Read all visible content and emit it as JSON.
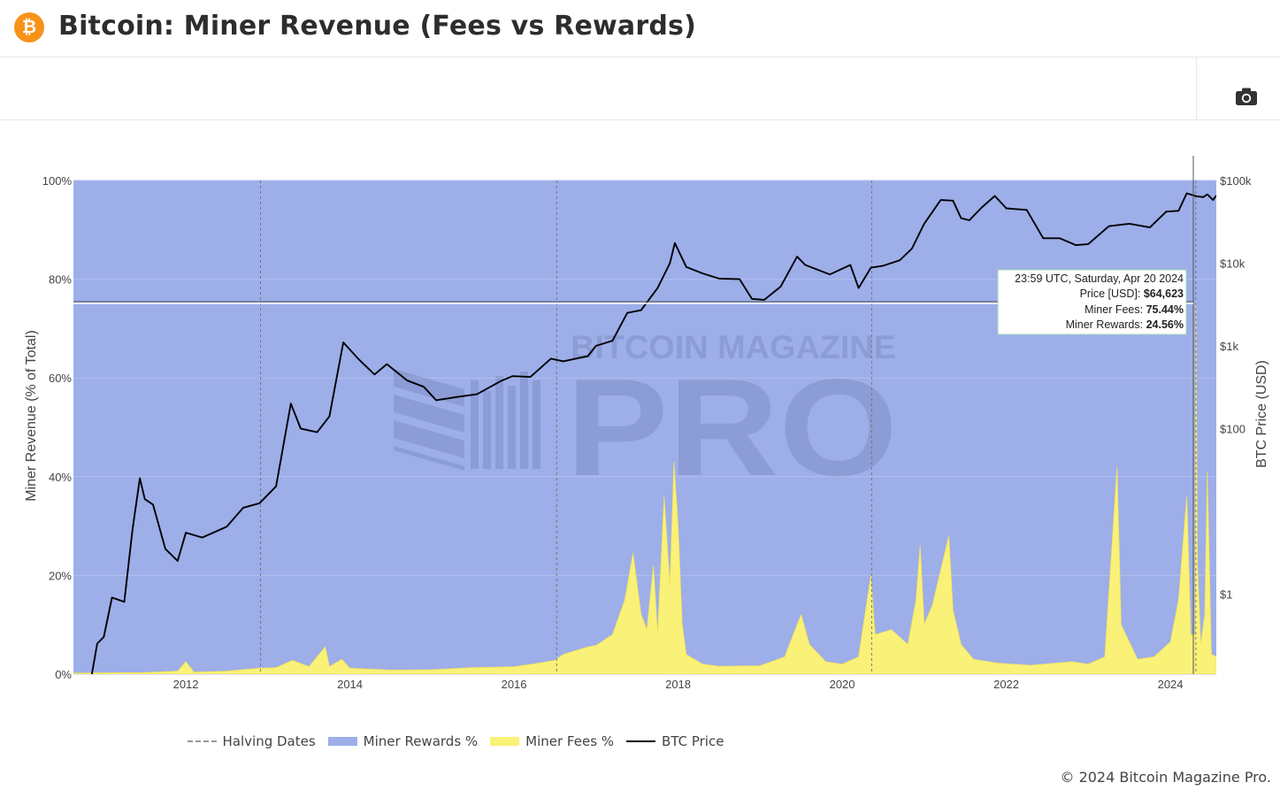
{
  "header": {
    "logo_glyph": "₿",
    "title": "Bitcoin: Miner Revenue (Fees vs Rewards)"
  },
  "toolbar": {
    "camera_icon": "camera-icon"
  },
  "colors": {
    "rewards": "#9daee9",
    "fees": "#faf178",
    "fees_line": "#f2e35a",
    "price": "#000000",
    "halving": "#777777",
    "brand": "#f7931a"
  },
  "watermark": {
    "line1": "BITCOIN MAGAZINE",
    "line2": "PRO"
  },
  "legend": {
    "halving": "Halving Dates",
    "rewards": "Miner Rewards %",
    "fees": "Miner Fees %",
    "price": "BTC Price"
  },
  "tooltip": {
    "date": "23:59 UTC, Saturday, Apr 20 2024",
    "price_label": "Price [USD]:",
    "price_value": "$64,623",
    "fees_label": "Miner Fees:",
    "fees_value": "75.44%",
    "rewards_label": "Miner Rewards:",
    "rewards_value": "24.56%"
  },
  "copyright": "© 2024 Bitcoin Magazine Pro.",
  "chart_data": {
    "type": "area",
    "x_range": [
      2010.63,
      2024.56
    ],
    "ylim": [
      0,
      100
    ],
    "ylabel": "Miner Revenue (% of Total)",
    "y2label": "BTC Price (USD)",
    "y2_scale": "log",
    "x_ticks": [
      2012,
      2014,
      2016,
      2018,
      2020,
      2022,
      2024
    ],
    "y_ticks": [
      0,
      20,
      40,
      60,
      80,
      100
    ],
    "y_tick_labels": [
      "0%",
      "20%",
      "40%",
      "60%",
      "80%",
      "100%"
    ],
    "y2_ticks": [
      1,
      100,
      1000,
      10000,
      100000
    ],
    "y2_tick_labels": [
      "$1",
      "$100",
      "$1k",
      "$10k",
      "$100k"
    ],
    "halving_dates": [
      2012.91,
      2016.52,
      2020.36,
      2024.31
    ],
    "series": [
      {
        "name": "Miner Rewards %",
        "type": "area",
        "note": "100 minus Miner Fees %"
      },
      {
        "name": "Miner Fees %",
        "type": "area",
        "points": [
          [
            2010.63,
            0.2
          ],
          [
            2011.5,
            0.3
          ],
          [
            2011.9,
            0.6
          ],
          [
            2012.0,
            2.5
          ],
          [
            2012.1,
            0.4
          ],
          [
            2012.5,
            0.6
          ],
          [
            2012.9,
            1.2
          ],
          [
            2013.1,
            1.3
          ],
          [
            2013.3,
            2.8
          ],
          [
            2013.5,
            1.5
          ],
          [
            2013.7,
            5.5
          ],
          [
            2013.75,
            1.5
          ],
          [
            2013.9,
            3.0
          ],
          [
            2014.0,
            1.2
          ],
          [
            2014.5,
            0.8
          ],
          [
            2015.0,
            0.9
          ],
          [
            2015.5,
            1.3
          ],
          [
            2015.8,
            1.4
          ],
          [
            2016.0,
            1.5
          ],
          [
            2016.3,
            2.2
          ],
          [
            2016.5,
            2.8
          ],
          [
            2016.6,
            4.0
          ],
          [
            2016.9,
            5.5
          ],
          [
            2017.0,
            5.8
          ],
          [
            2017.2,
            8.0
          ],
          [
            2017.35,
            15.0
          ],
          [
            2017.45,
            24.5
          ],
          [
            2017.55,
            12.0
          ],
          [
            2017.62,
            9.0
          ],
          [
            2017.7,
            22.0
          ],
          [
            2017.75,
            8.0
          ],
          [
            2017.83,
            36.0
          ],
          [
            2017.9,
            18.0
          ],
          [
            2017.95,
            43.0
          ],
          [
            2018.0,
            30.0
          ],
          [
            2018.05,
            10.0
          ],
          [
            2018.1,
            4.0
          ],
          [
            2018.3,
            2.0
          ],
          [
            2018.5,
            1.6
          ],
          [
            2019.0,
            1.7
          ],
          [
            2019.3,
            3.5
          ],
          [
            2019.45,
            10.0
          ],
          [
            2019.5,
            12.0
          ],
          [
            2019.6,
            6.0
          ],
          [
            2019.8,
            2.5
          ],
          [
            2020.0,
            2.0
          ],
          [
            2020.2,
            3.5
          ],
          [
            2020.35,
            20.0
          ],
          [
            2020.4,
            8.0
          ],
          [
            2020.6,
            9.0
          ],
          [
            2020.8,
            6.0
          ],
          [
            2020.9,
            15.0
          ],
          [
            2020.95,
            26.0
          ],
          [
            2021.0,
            10.0
          ],
          [
            2021.1,
            14.0
          ],
          [
            2021.3,
            28.0
          ],
          [
            2021.35,
            13.0
          ],
          [
            2021.45,
            6.0
          ],
          [
            2021.6,
            3.0
          ],
          [
            2021.9,
            2.2
          ],
          [
            2022.3,
            1.8
          ],
          [
            2022.8,
            2.5
          ],
          [
            2023.0,
            2.0
          ],
          [
            2023.2,
            3.5
          ],
          [
            2023.35,
            42.0
          ],
          [
            2023.4,
            10.0
          ],
          [
            2023.6,
            3.0
          ],
          [
            2023.8,
            3.5
          ],
          [
            2024.0,
            6.5
          ],
          [
            2024.1,
            15.0
          ],
          [
            2024.2,
            36.0
          ],
          [
            2024.25,
            8.0
          ],
          [
            2024.3,
            8.0
          ],
          [
            2024.31,
            75.44
          ],
          [
            2024.33,
            22.0
          ],
          [
            2024.37,
            6.0
          ],
          [
            2024.42,
            12.0
          ],
          [
            2024.45,
            41.0
          ],
          [
            2024.5,
            4.0
          ],
          [
            2024.56,
            3.5
          ]
        ]
      },
      {
        "name": "BTC Price",
        "type": "line",
        "axis": "y2",
        "points": [
          [
            2010.63,
            0.07
          ],
          [
            2010.75,
            0.06
          ],
          [
            2010.85,
            0.1
          ],
          [
            2010.92,
            0.25
          ],
          [
            2011.0,
            0.3
          ],
          [
            2011.1,
            0.9
          ],
          [
            2011.25,
            0.8
          ],
          [
            2011.35,
            6.0
          ],
          [
            2011.44,
            25.0
          ],
          [
            2011.5,
            14.0
          ],
          [
            2011.6,
            12.0
          ],
          [
            2011.75,
            3.5
          ],
          [
            2011.9,
            2.5
          ],
          [
            2012.0,
            5.5
          ],
          [
            2012.2,
            4.8
          ],
          [
            2012.5,
            6.5
          ],
          [
            2012.7,
            11.0
          ],
          [
            2012.9,
            12.5
          ],
          [
            2013.1,
            20.0
          ],
          [
            2013.28,
            200.0
          ],
          [
            2013.4,
            100.0
          ],
          [
            2013.6,
            90.0
          ],
          [
            2013.75,
            140.0
          ],
          [
            2013.92,
            1100.0
          ],
          [
            2014.1,
            700.0
          ],
          [
            2014.3,
            450.0
          ],
          [
            2014.45,
            600.0
          ],
          [
            2014.7,
            380.0
          ],
          [
            2014.9,
            320.0
          ],
          [
            2015.05,
            220.0
          ],
          [
            2015.3,
            240.0
          ],
          [
            2015.55,
            260.0
          ],
          [
            2015.85,
            380.0
          ],
          [
            2015.98,
            430.0
          ],
          [
            2016.2,
            420.0
          ],
          [
            2016.45,
            700.0
          ],
          [
            2016.6,
            650.0
          ],
          [
            2016.9,
            750.0
          ],
          [
            2017.0,
            1000.0
          ],
          [
            2017.2,
            1150.0
          ],
          [
            2017.38,
            2500.0
          ],
          [
            2017.55,
            2700.0
          ],
          [
            2017.75,
            5000.0
          ],
          [
            2017.9,
            10000.0
          ],
          [
            2017.96,
            17500.0
          ],
          [
            2018.1,
            9000.0
          ],
          [
            2018.3,
            7500.0
          ],
          [
            2018.5,
            6500.0
          ],
          [
            2018.75,
            6400.0
          ],
          [
            2018.9,
            3700.0
          ],
          [
            2019.05,
            3600.0
          ],
          [
            2019.25,
            5200.0
          ],
          [
            2019.45,
            12000.0
          ],
          [
            2019.55,
            9500.0
          ],
          [
            2019.85,
            7300.0
          ],
          [
            2020.1,
            9500.0
          ],
          [
            2020.2,
            5000.0
          ],
          [
            2020.35,
            8800.0
          ],
          [
            2020.5,
            9300.0
          ],
          [
            2020.7,
            10800.0
          ],
          [
            2020.85,
            15000.0
          ],
          [
            2021.0,
            30000.0
          ],
          [
            2021.2,
            58000.0
          ],
          [
            2021.35,
            57000.0
          ],
          [
            2021.45,
            35000.0
          ],
          [
            2021.55,
            33000.0
          ],
          [
            2021.7,
            47000.0
          ],
          [
            2021.86,
            65000.0
          ],
          [
            2022.0,
            46000.0
          ],
          [
            2022.25,
            44000.0
          ],
          [
            2022.45,
            20000.0
          ],
          [
            2022.65,
            20000.0
          ],
          [
            2022.85,
            16500.0
          ],
          [
            2023.0,
            17000.0
          ],
          [
            2023.25,
            28000.0
          ],
          [
            2023.5,
            30000.0
          ],
          [
            2023.75,
            27000.0
          ],
          [
            2023.95,
            42000.0
          ],
          [
            2024.1,
            43000.0
          ],
          [
            2024.2,
            70000.0
          ],
          [
            2024.31,
            64623.0
          ],
          [
            2024.4,
            63000.0
          ],
          [
            2024.45,
            68000.0
          ],
          [
            2024.52,
            58000.0
          ],
          [
            2024.56,
            66000.0
          ]
        ]
      }
    ],
    "legend_position": "bottom"
  }
}
